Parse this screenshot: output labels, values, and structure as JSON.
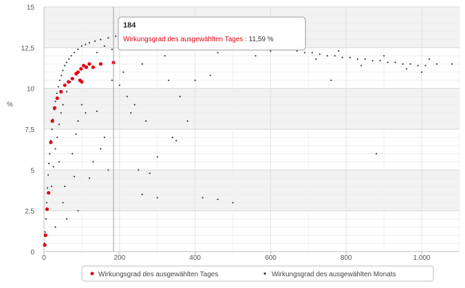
{
  "chart_data": {
    "type": "scatter",
    "title": "",
    "xlabel": "",
    "ylabel": "%",
    "xlim": [
      0,
      1100
    ],
    "ylim": [
      0,
      15
    ],
    "grid": true,
    "x_ticks": [
      {
        "value": 0,
        "label": "0"
      },
      {
        "value": 200,
        "label": "200"
      },
      {
        "value": 400,
        "label": "400"
      },
      {
        "value": 600,
        "label": "600"
      },
      {
        "value": 800,
        "label": "800"
      },
      {
        "value": 1000,
        "label": "1.000"
      }
    ],
    "y_ticks": [
      {
        "value": 0,
        "label": "0"
      },
      {
        "value": 2.5,
        "label": "2,5"
      },
      {
        "value": 5,
        "label": "5"
      },
      {
        "value": 7.5,
        "label": "7,5"
      },
      {
        "value": 10,
        "label": "10"
      },
      {
        "value": 12.5,
        "label": "12,5"
      },
      {
        "value": 15,
        "label": "15"
      }
    ],
    "legend_position": "bottom-center",
    "series": [
      {
        "name": "Wirkungsgrad des ausgewählten Tages",
        "color": "#e3000f",
        "marker": "dot-large",
        "points": [
          [
            2,
            0.4
          ],
          [
            4,
            1.0
          ],
          [
            8,
            2.6
          ],
          [
            12,
            3.6
          ],
          [
            18,
            6.7
          ],
          [
            22,
            8.0
          ],
          [
            28,
            8.8
          ],
          [
            35,
            9.4
          ],
          [
            45,
            9.8
          ],
          [
            55,
            10.2
          ],
          [
            65,
            10.4
          ],
          [
            75,
            10.6
          ],
          [
            85,
            10.9
          ],
          [
            90,
            11.0
          ],
          [
            98,
            11.2
          ],
          [
            105,
            11.4
          ],
          [
            112,
            11.3
          ],
          [
            120,
            11.5
          ],
          [
            95,
            10.5
          ],
          [
            100,
            10.4
          ],
          [
            130,
            11.3
          ],
          [
            150,
            11.5
          ],
          [
            184,
            11.59
          ]
        ]
      },
      {
        "name": "Wirkungsgrad des ausgewählten Monats",
        "color": "#333333",
        "marker": "dot-small",
        "points": [
          [
            1,
            0.5
          ],
          [
            3,
            1.2
          ],
          [
            5,
            2.0
          ],
          [
            7,
            3.0
          ],
          [
            9,
            3.9
          ],
          [
            11,
            4.7
          ],
          [
            13,
            5.4
          ],
          [
            15,
            6.0
          ],
          [
            18,
            6.8
          ],
          [
            21,
            7.5
          ],
          [
            24,
            8.1
          ],
          [
            27,
            8.7
          ],
          [
            30,
            9.2
          ],
          [
            34,
            9.7
          ],
          [
            38,
            10.1
          ],
          [
            42,
            10.5
          ],
          [
            46,
            10.8
          ],
          [
            50,
            11.1
          ],
          [
            55,
            11.4
          ],
          [
            60,
            11.6
          ],
          [
            66,
            11.8
          ],
          [
            72,
            12.0
          ],
          [
            80,
            12.2
          ],
          [
            90,
            12.4
          ],
          [
            100,
            12.6
          ],
          [
            110,
            12.7
          ],
          [
            120,
            12.8
          ],
          [
            135,
            12.9
          ],
          [
            150,
            13.0
          ],
          [
            170,
            13.1
          ],
          [
            190,
            13.2
          ],
          [
            210,
            13.3
          ],
          [
            230,
            13.3
          ],
          [
            250,
            13.35
          ],
          [
            270,
            13.4
          ],
          [
            290,
            13.45
          ],
          [
            310,
            13.4
          ],
          [
            330,
            13.4
          ],
          [
            350,
            13.3
          ],
          [
            370,
            13.3
          ],
          [
            390,
            13.4
          ],
          [
            410,
            13.3
          ],
          [
            430,
            13.2
          ],
          [
            450,
            13.1
          ],
          [
            470,
            13.0
          ],
          [
            490,
            12.9
          ],
          [
            510,
            12.8
          ],
          [
            530,
            12.75
          ],
          [
            550,
            12.7
          ],
          [
            570,
            12.6
          ],
          [
            590,
            12.5
          ],
          [
            610,
            12.5
          ],
          [
            630,
            12.4
          ],
          [
            650,
            12.4
          ],
          [
            670,
            12.3
          ],
          [
            690,
            12.2
          ],
          [
            710,
            12.2
          ],
          [
            730,
            12.1
          ],
          [
            750,
            12.0
          ],
          [
            770,
            12.0
          ],
          [
            790,
            11.9
          ],
          [
            810,
            11.9
          ],
          [
            830,
            11.8
          ],
          [
            850,
            11.8
          ],
          [
            870,
            11.7
          ],
          [
            890,
            11.7
          ],
          [
            910,
            11.6
          ],
          [
            930,
            11.6
          ],
          [
            950,
            11.5
          ],
          [
            970,
            11.5
          ],
          [
            990,
            11.4
          ],
          [
            1010,
            11.4
          ],
          [
            1040,
            11.5
          ],
          [
            1080,
            11.5
          ],
          [
            20,
            4.0
          ],
          [
            25,
            5.2
          ],
          [
            30,
            6.3
          ],
          [
            35,
            7.0
          ],
          [
            40,
            7.8
          ],
          [
            45,
            8.5
          ],
          [
            50,
            9.0
          ],
          [
            60,
            9.8
          ],
          [
            70,
            10.4
          ],
          [
            40,
            5.5
          ],
          [
            50,
            3.0
          ],
          [
            60,
            2.0
          ],
          [
            80,
            4.6
          ],
          [
            90,
            8.0
          ],
          [
            100,
            9.0
          ],
          [
            110,
            8.5
          ],
          [
            120,
            4.5
          ],
          [
            130,
            5.5
          ],
          [
            140,
            8.6
          ],
          [
            150,
            6.3
          ],
          [
            160,
            7.0
          ],
          [
            170,
            5.0
          ],
          [
            180,
            10.5
          ],
          [
            200,
            10.2
          ],
          [
            220,
            9.5
          ],
          [
            240,
            9.0
          ],
          [
            250,
            5.0
          ],
          [
            270,
            8.0
          ],
          [
            280,
            4.8
          ],
          [
            300,
            5.8
          ],
          [
            330,
            10.5
          ],
          [
            340,
            7.0
          ],
          [
            350,
            6.8
          ],
          [
            360,
            9.5
          ],
          [
            380,
            8.0
          ],
          [
            400,
            10.5
          ],
          [
            260,
            3.5
          ],
          [
            300,
            3.3
          ],
          [
            420,
            3.3
          ],
          [
            460,
            3.2
          ],
          [
            500,
            3.0
          ],
          [
            230,
            8.5
          ],
          [
            90,
            2.5
          ],
          [
            30,
            1.5
          ],
          [
            55,
            4.0
          ],
          [
            75,
            6.0
          ],
          [
            85,
            7.2
          ],
          [
            440,
            10.8
          ],
          [
            760,
            10.5
          ],
          [
            880,
            6.0
          ],
          [
            210,
            11.0
          ],
          [
            260,
            11.5
          ],
          [
            320,
            12.0
          ],
          [
            380,
            12.8
          ],
          [
            420,
            12.5
          ],
          [
            460,
            12.2
          ],
          [
            500,
            12.6
          ],
          [
            560,
            12.0
          ],
          [
            620,
            12.8
          ],
          [
            680,
            12.6
          ],
          [
            720,
            11.8
          ],
          [
            780,
            12.3
          ],
          [
            840,
            11.4
          ],
          [
            900,
            12.0
          ],
          [
            960,
            11.2
          ],
          [
            1000,
            11.0
          ],
          [
            1020,
            11.8
          ],
          [
            140,
            12.2
          ],
          [
            160,
            12.6
          ],
          [
            180,
            12.4
          ],
          [
            240,
            12.9
          ],
          [
            300,
            13.0
          ],
          [
            360,
            12.7
          ],
          [
            480,
            13.2
          ],
          [
            540,
            12.9
          ],
          [
            600,
            12.3
          ]
        ]
      }
    ],
    "tooltip": {
      "header": "184",
      "series_label": "Wirkungsgrad des ausgewählten Tages",
      "value_text": ": 11,59 %",
      "x": 184,
      "y": 11.59
    }
  }
}
